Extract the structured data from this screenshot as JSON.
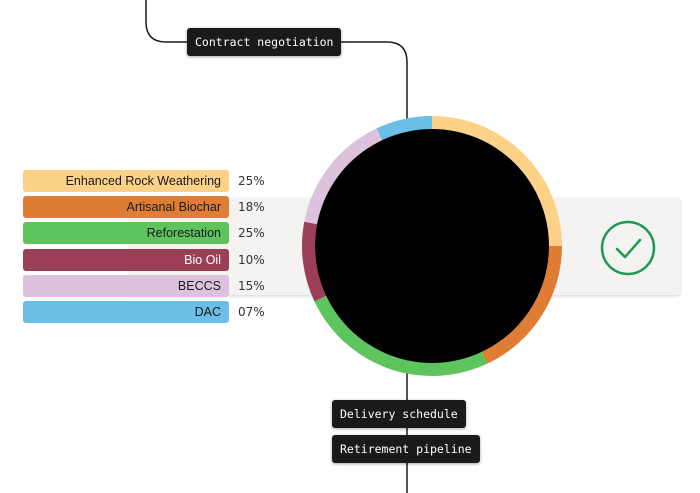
{
  "flow": {
    "top_tag": "Contract negotiation",
    "bottom_tags": [
      "Delivery schedule",
      "Retirement pipeline"
    ]
  },
  "status": {
    "icon": "check-circle-icon",
    "color": "#1e9a55"
  },
  "chart_data": {
    "type": "pie",
    "style": "donut",
    "categories": [
      "Enhanced Rock Weathering",
      "Artisanal Biochar",
      "Reforestation",
      "Bio Oil",
      "BECCS",
      "DAC"
    ],
    "values": [
      25,
      18,
      25,
      10,
      15,
      7
    ],
    "value_labels": [
      "25%",
      "18%",
      "25%",
      "10%",
      "15%",
      "07%"
    ],
    "colors": [
      "#fdd187",
      "#de7d33",
      "#5ec45e",
      "#9a3f55",
      "#dcc2dc",
      "#6bbfe6"
    ],
    "text_colors": [
      "#1a1a1a",
      "#1a1a1a",
      "#1a1a1a",
      "#ffffff",
      "#1a1a1a",
      "#1a1a1a"
    ],
    "center_color": "#000000",
    "legend": "left"
  }
}
